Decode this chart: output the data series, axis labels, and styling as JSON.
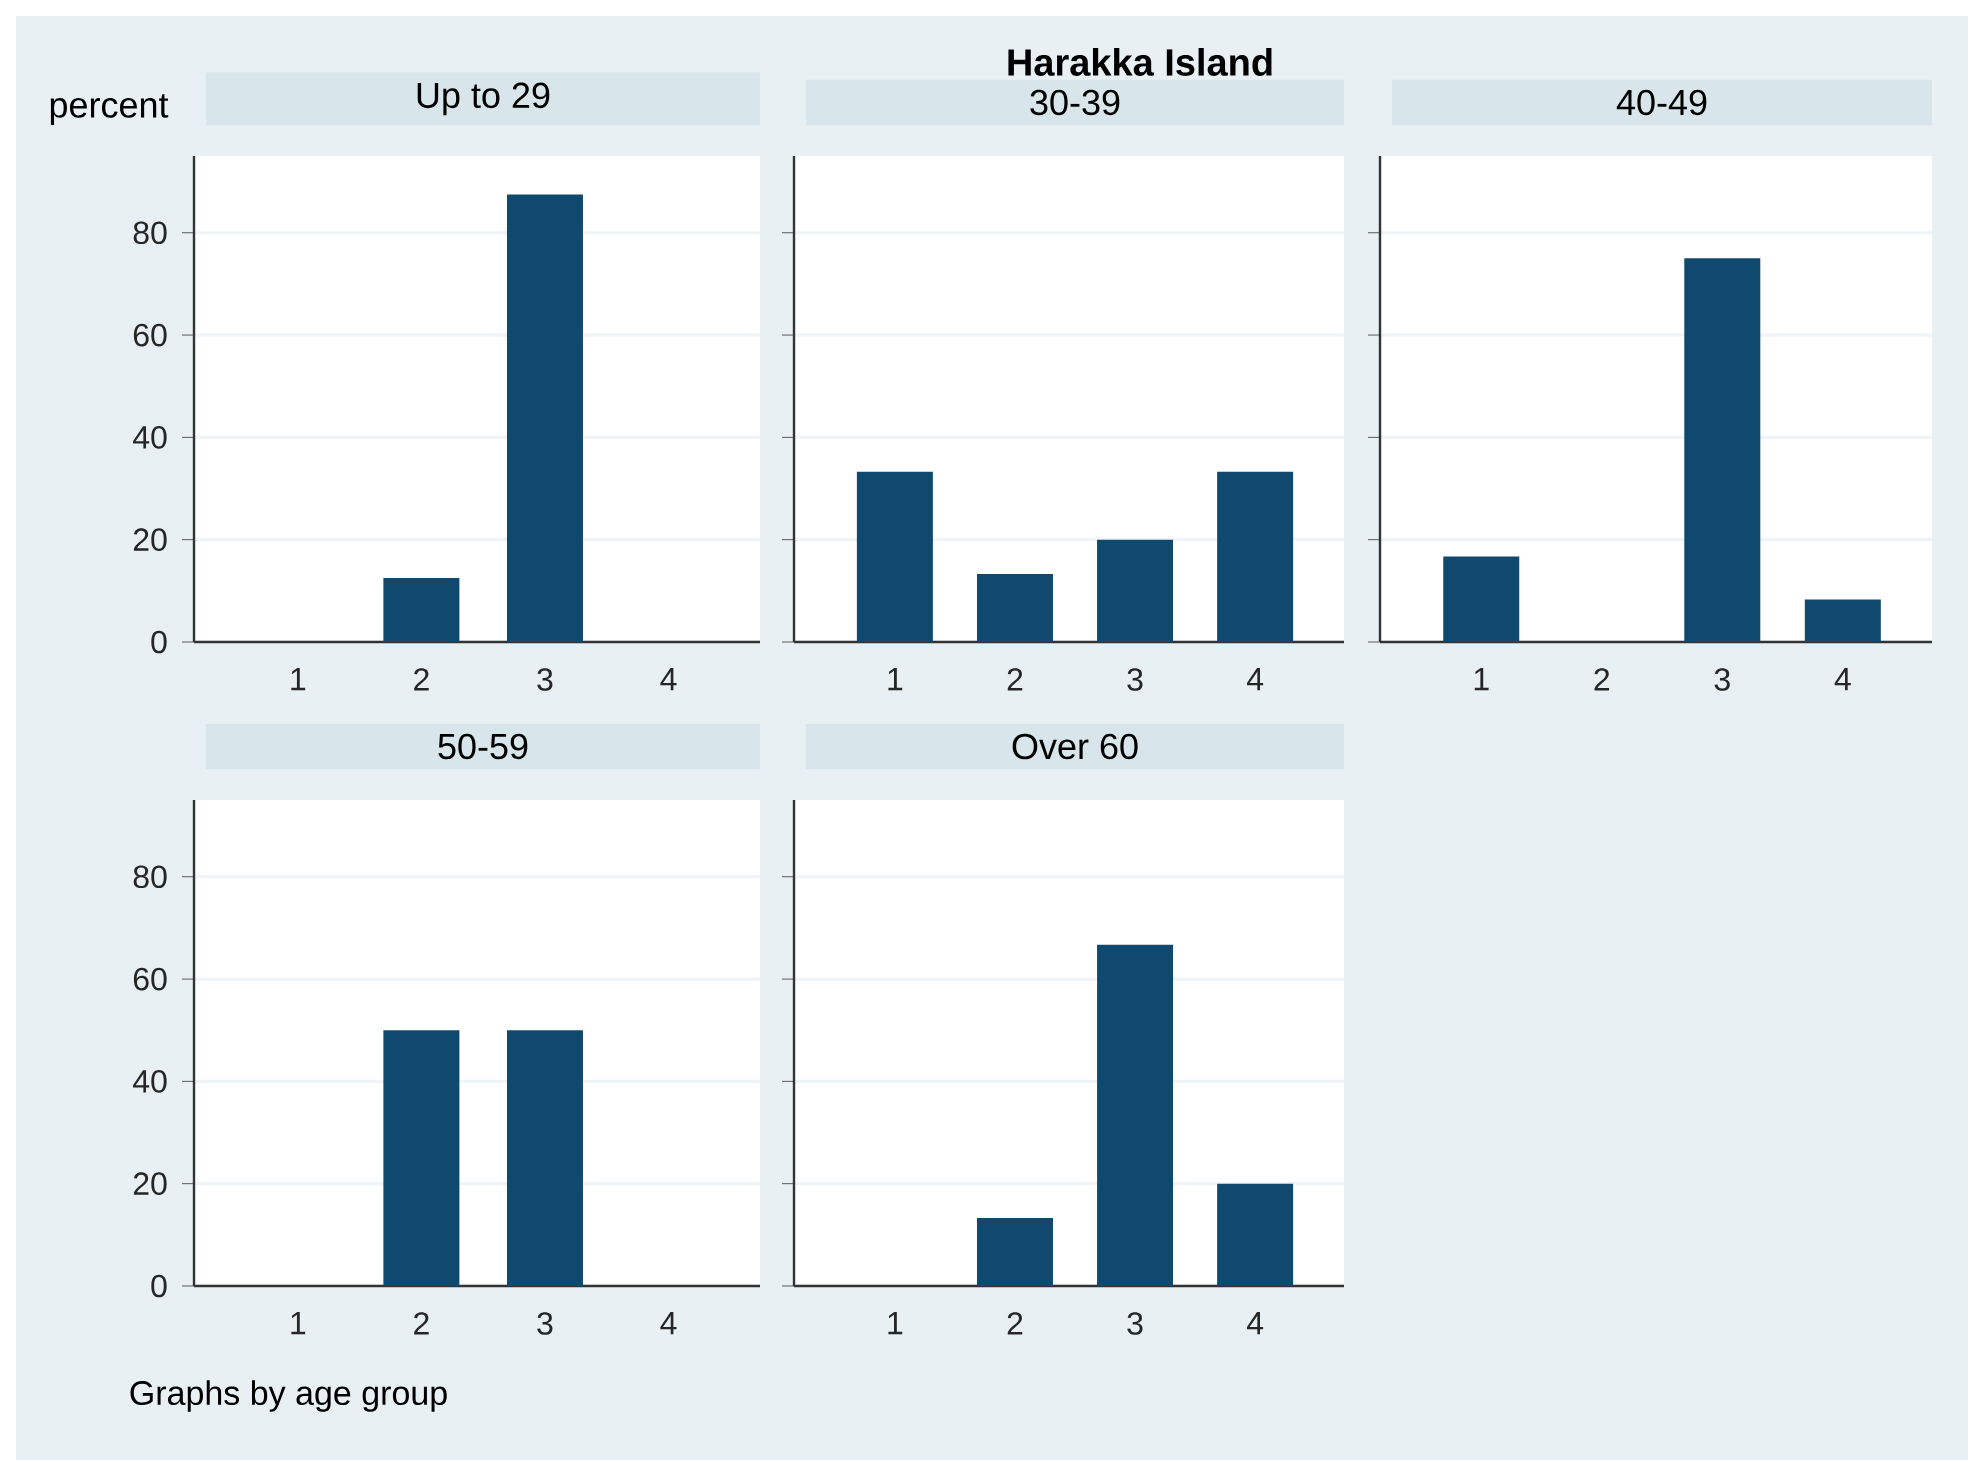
{
  "chart_data": [
    {
      "type": "bar",
      "title": "Up to 29",
      "ylabel": "percent",
      "annotations": [
        "Harakka Island",
        "Graphs by age group"
      ],
      "categories": [
        "1",
        "2",
        "3",
        "4"
      ],
      "values": [
        0,
        12.5,
        87.5,
        0
      ],
      "color": "#0f4a6e",
      "ylim": [
        0,
        95
      ],
      "yticks": [
        0,
        20,
        40,
        60,
        80
      ],
      "grid": "y"
    },
    {
      "type": "bar",
      "title": "30-39",
      "categories": [
        "1",
        "2",
        "3",
        "4"
      ],
      "values": [
        33.3,
        13.3,
        20,
        33.3
      ],
      "color": "#0f4a6e",
      "ylim": [
        0,
        95
      ],
      "yticks": [
        0,
        20,
        40,
        60,
        80
      ],
      "grid": "y",
      "tick_labels": "x"
    },
    {
      "type": "bar",
      "title": "40-49",
      "categories": [
        "1",
        "2",
        "3",
        "4"
      ],
      "values": [
        16.7,
        0,
        75,
        8.3
      ],
      "color": "#0f4a6e",
      "ylim": [
        0,
        95
      ],
      "yticks": [
        0,
        20,
        40,
        60,
        80
      ],
      "grid": "y",
      "tick_labels": "x"
    },
    {
      "type": "bar",
      "title": "50-59",
      "categories": [
        "1",
        "2",
        "3",
        "4"
      ],
      "values": [
        0,
        50,
        50,
        0
      ],
      "color": "#0f4a6e",
      "ylim": [
        0,
        95
      ],
      "yticks": [
        0,
        20,
        40,
        60,
        80
      ],
      "grid": "y"
    },
    {
      "type": "bar",
      "title": "Over 60",
      "categories": [
        "1",
        "2",
        "3",
        "4"
      ],
      "values": [
        0,
        13.3,
        66.7,
        20
      ],
      "color": "#0f4a6e",
      "ylim": [
        0,
        95
      ],
      "yticks": [
        0,
        20,
        40,
        60,
        80
      ],
      "grid": "y",
      "tick_labels": "x"
    }
  ]
}
